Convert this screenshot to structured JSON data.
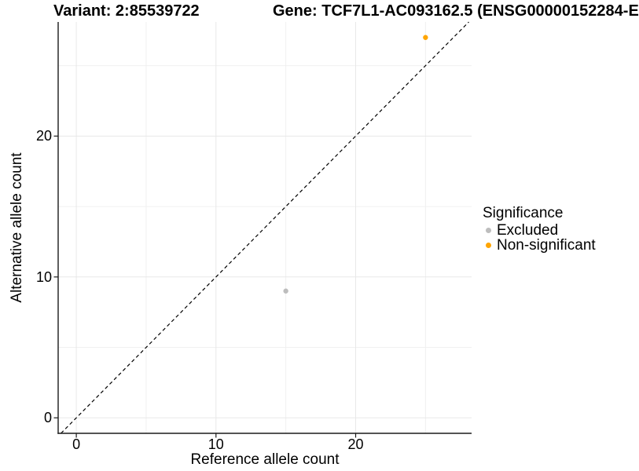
{
  "chart_data": {
    "type": "scatter",
    "titles": {
      "variant": "Variant: 2:85539722",
      "gene": "Gene: TCF7L1-AC093162.5 (ENSG00000152284-E"
    },
    "xlabel": "Reference allele count",
    "ylabel": "Alternative allele count",
    "xlim": [
      -1.3,
      28.3
    ],
    "ylim": [
      -1.1,
      28.1
    ],
    "xticks": [
      0,
      10,
      20
    ],
    "yticks": [
      0,
      10,
      20
    ],
    "x_minor_ticks": [
      5,
      15,
      25
    ],
    "y_minor_ticks": [
      5,
      15,
      25
    ],
    "grid": "on",
    "identity_line": {
      "equation": "y = x",
      "style": "dashed",
      "color": "#000000"
    },
    "legend": {
      "title": "Significance",
      "position": "right"
    },
    "series": [
      {
        "name": "Excluded",
        "color": "#BDBDBD",
        "points": [
          {
            "x": 15,
            "y": 9
          }
        ]
      },
      {
        "name": "Non-significant",
        "color": "#FFA500",
        "points": [
          {
            "x": 25,
            "y": 27
          }
        ]
      }
    ],
    "colors": {
      "grid_major": "#E8E8E8",
      "grid_minor": "#F0F0F0",
      "axis": "#1A1A1A",
      "background": "#FFFFFF"
    }
  }
}
